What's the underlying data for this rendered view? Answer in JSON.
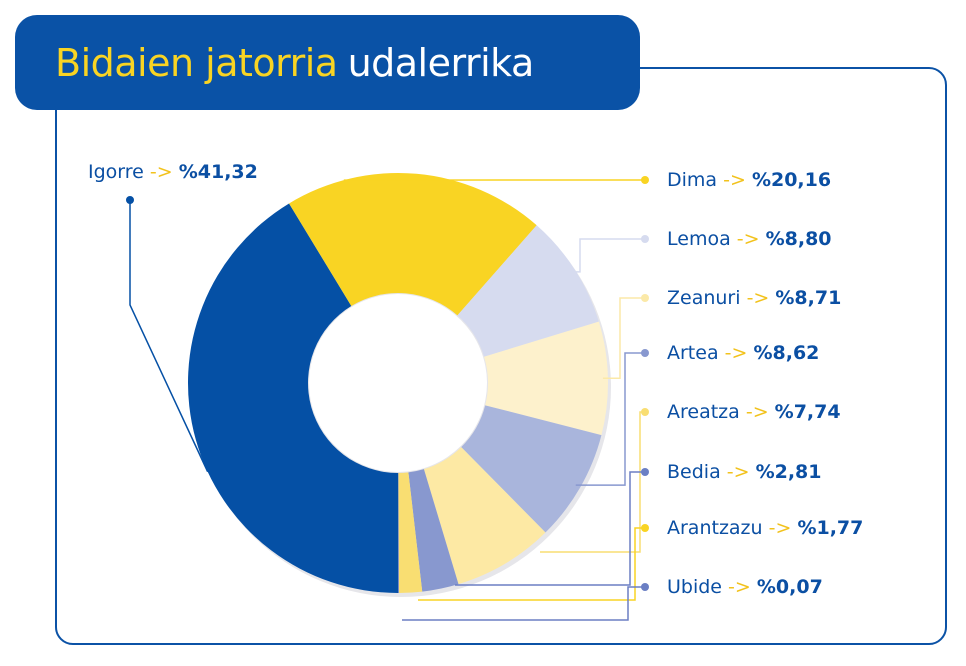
{
  "title": {
    "part1": "Bidaien jatorria",
    "part2": "udalerrika"
  },
  "arrow": "->",
  "chart_data": {
    "type": "pie",
    "subtype": "donut",
    "title": "Bidaien jatorria udalerrika",
    "categories": [
      "Igorre",
      "Dima",
      "Lemoa",
      "Zeanuri",
      "Artea",
      "Areatza",
      "Bedia",
      "Arantzazu",
      "Ubide"
    ],
    "values": [
      41.32,
      20.16,
      8.8,
      8.71,
      8.62,
      7.74,
      2.81,
      1.77,
      0.07
    ],
    "labels": [
      "%41,32",
      "%20,16",
      "%8,80",
      "%8,71",
      "%8,62",
      "%7,74",
      "%2,81",
      "%1,77",
      "%0,07"
    ],
    "colors": [
      "#0550a5",
      "#f9d423",
      "#d6dbef",
      "#fdf1cc",
      "#a9b5dc",
      "#fde9a4",
      "#8898cf",
      "#f9de72",
      "#6b7fc4"
    ],
    "line_colors": [
      "#0550a5",
      "#f9d423",
      "#d6dbef",
      "#fbe9a8",
      "#8898cf",
      "#f9de72",
      "#6b7fc4",
      "#f9d423",
      "#6b7fc4"
    ]
  }
}
